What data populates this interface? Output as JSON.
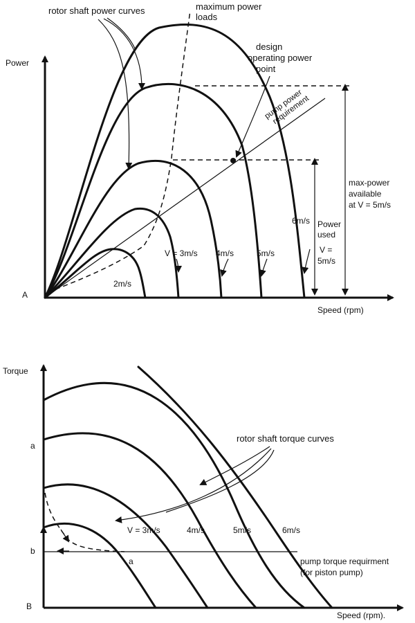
{
  "top_chart": {
    "axis_y_label": "Power",
    "axis_x_label": "Speed (rpm)",
    "origin_label": "A",
    "annotations": {
      "rotor_curves": "rotor shaft power curves",
      "max_power_loads_line1": "maximum power",
      "max_power_loads_line2": "loads",
      "design_point_line1": "design",
      "design_point_line2": "operating power",
      "design_point_line3": "point",
      "pump_req_line1": "pump power",
      "pump_req_line2": "requirement",
      "power_used_line1": "Power",
      "power_used_line2": "used",
      "power_used_line3": "V =",
      "power_used_line4": "5m/s",
      "max_avail_line1": "max-power",
      "max_avail_line2": "available",
      "max_avail_line3": "at V = 5m/s"
    },
    "curve_labels": [
      "2m/s",
      "V = 3m/s",
      "4m/s",
      "5m/s",
      "6m/s"
    ]
  },
  "bottom_chart": {
    "axis_y_label": "Torque",
    "axis_x_label": "Speed (rpm).",
    "origin_label": "B",
    "tick_a": "a",
    "tick_b": "b",
    "point_a": "a",
    "annotations": {
      "rotor_curves": "rotor shaft torque curves",
      "pump_req_line1": "pump torque requirment",
      "pump_req_line2": "(for piston pump)"
    },
    "curve_labels": [
      "V = 3m/s",
      "4m/s",
      "5m/s",
      "6m/s"
    ]
  }
}
